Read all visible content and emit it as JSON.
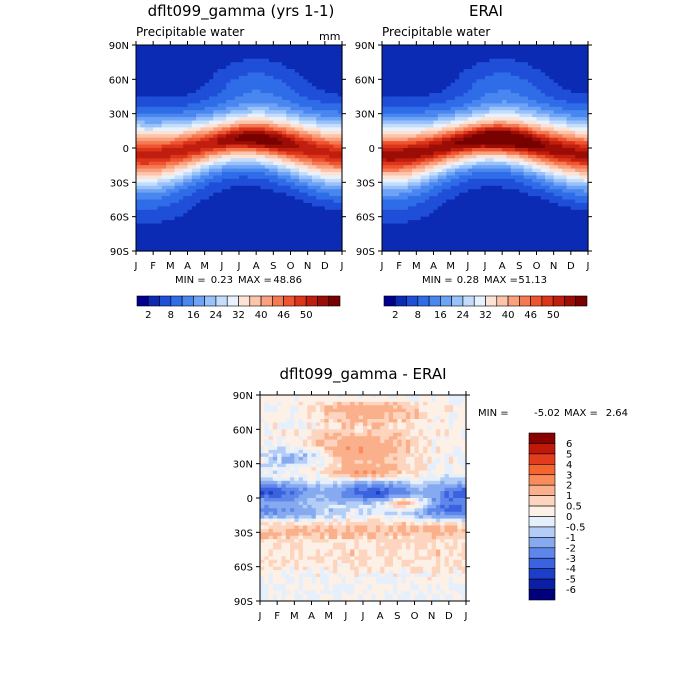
{
  "chart_data": [
    {
      "type": "heatmap",
      "title": "dflt099_gamma (yrs 1-1)",
      "subtitle": "Precipitable water",
      "units": "mm",
      "x_ticks": [
        "J",
        "F",
        "M",
        "A",
        "M",
        "J",
        "J",
        "A",
        "S",
        "O",
        "N",
        "D",
        "J"
      ],
      "y_ticks": [
        "90N",
        "60N",
        "30N",
        "0",
        "30S",
        "60S",
        "90S"
      ],
      "stats": {
        "min_label": "MIN =",
        "min": "0.23",
        "max_label": "MAX =",
        "max": "48.86"
      },
      "colorbar": {
        "orientation": "horizontal",
        "labels": [
          "2",
          "8",
          "16",
          "24",
          "32",
          "40",
          "46",
          "50"
        ],
        "colors": [
          "#00008c",
          "#0c2bb4",
          "#1f4fd8",
          "#2f6ce8",
          "#4a86f0",
          "#6ea3f6",
          "#99c2fa",
          "#c4ddfb",
          "#e8f2fe",
          "#fde3d6",
          "#fcc4aa",
          "#f9a07e",
          "#f57a53",
          "#ee5430",
          "#dc351a",
          "#c01e0e",
          "#9c0d06",
          "#770200"
        ]
      },
      "peak_value": 48.86,
      "peak_month": 7.3,
      "peak_lat": 8
    },
    {
      "type": "heatmap",
      "title": "ERAI",
      "subtitle": "Precipitable water",
      "x_ticks": [
        "J",
        "F",
        "M",
        "A",
        "M",
        "J",
        "J",
        "A",
        "S",
        "O",
        "N",
        "D",
        "J"
      ],
      "y_ticks": [
        "90N",
        "60N",
        "30N",
        "0",
        "30S",
        "60S",
        "90S"
      ],
      "stats": {
        "min_label": "MIN =",
        "min": "0.28",
        "max_label": "MAX =",
        "max": "51.13"
      },
      "colorbar": {
        "orientation": "horizontal",
        "labels": [
          "2",
          "8",
          "16",
          "24",
          "32",
          "40",
          "46",
          "50"
        ],
        "colors": [
          "#00008c",
          "#0c2bb4",
          "#1f4fd8",
          "#2f6ce8",
          "#4a86f0",
          "#6ea3f6",
          "#99c2fa",
          "#c4ddfb",
          "#e8f2fe",
          "#fde3d6",
          "#fcc4aa",
          "#f9a07e",
          "#f57a53",
          "#ee5430",
          "#dc351a",
          "#c01e0e",
          "#9c0d06",
          "#770200"
        ]
      },
      "peak_value": 51.13,
      "peak_month": 7.0,
      "peak_lat": 6
    },
    {
      "type": "heatmap",
      "title": "dflt099_gamma - ERAI",
      "x_ticks": [
        "J",
        "F",
        "M",
        "A",
        "M",
        "J",
        "J",
        "A",
        "S",
        "O",
        "N",
        "D",
        "J"
      ],
      "y_ticks": [
        "90N",
        "60N",
        "30N",
        "0",
        "30S",
        "60S",
        "90S"
      ],
      "stats": {
        "min_label": "MIN =",
        "min": "-5.02",
        "max_label": "MAX =",
        "max": "2.64"
      },
      "colorbar": {
        "orientation": "vertical",
        "labels": [
          "6",
          "5",
          "4",
          "3",
          "2",
          "1",
          "0.5",
          "0",
          "-0.5",
          "-1",
          "-2",
          "-3",
          "-4",
          "-5",
          "-6"
        ],
        "colors": [
          "#8a0000",
          "#c0190a",
          "#e13d1c",
          "#f4652f",
          "#fa8c5c",
          "#fbb08c",
          "#fdd5bf",
          "#fdf0e6",
          "#e6f0fd",
          "#b3cdf6",
          "#86aaf0",
          "#5f86ea",
          "#3b62df",
          "#1c3ecb",
          "#0a1fa6",
          "#00007d"
        ]
      }
    }
  ]
}
